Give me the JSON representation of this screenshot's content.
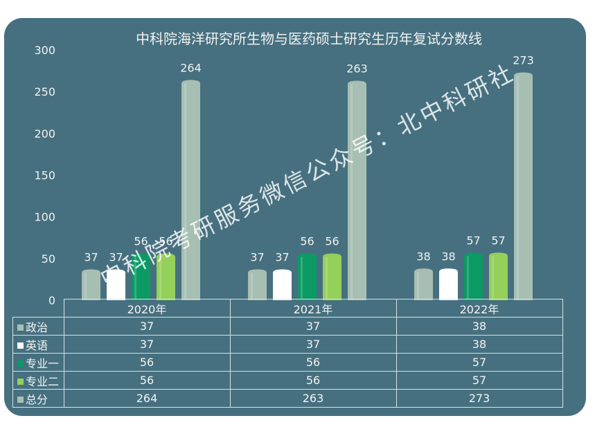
{
  "chart_data": {
    "type": "bar",
    "title": "中科院海洋研究所生物与医药硕士研究生历年复试分数线",
    "categories": [
      "2020年",
      "2021年",
      "2022年"
    ],
    "series": [
      {
        "name": "政治",
        "values": [
          37,
          37,
          38
        ],
        "color": "#a7bfb2"
      },
      {
        "name": "英语",
        "values": [
          37,
          37,
          38
        ],
        "color": "#ffffff"
      },
      {
        "name": "专业一",
        "values": [
          56,
          56,
          57
        ],
        "color": "#0b9a64"
      },
      {
        "name": "专业二",
        "values": [
          56,
          56,
          57
        ],
        "color": "#94d05a"
      },
      {
        "name": "总分",
        "values": [
          264,
          263,
          273
        ],
        "color": "#a7bfb2"
      }
    ],
    "ylim": [
      0,
      300
    ],
    "yticks": [
      0,
      50,
      100,
      150,
      200,
      250,
      300
    ],
    "legend": "data-table",
    "grid": false
  },
  "watermark": "中科院考研服务微信公众号：北中科研社"
}
